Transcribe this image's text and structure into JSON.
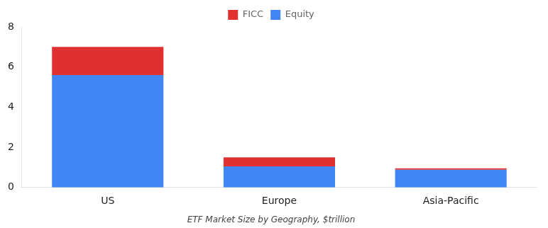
{
  "chart_data": {
    "type": "bar",
    "title": "ETF Market Size by Geography, $trillion",
    "categories": [
      "US",
      "Europe",
      "Asia-Pacific"
    ],
    "series": [
      {
        "name": "Equity",
        "color": "#4285F4",
        "values": [
          5.6,
          1.05,
          0.88
        ]
      },
      {
        "name": "FICC",
        "color": "#E03030",
        "values": [
          1.4,
          0.45,
          0.07
        ]
      }
    ],
    "stacked": true,
    "ylim": [
      0,
      8
    ],
    "yticks": [
      0,
      2,
      4,
      6,
      8
    ],
    "grid": false,
    "legend": "top"
  }
}
